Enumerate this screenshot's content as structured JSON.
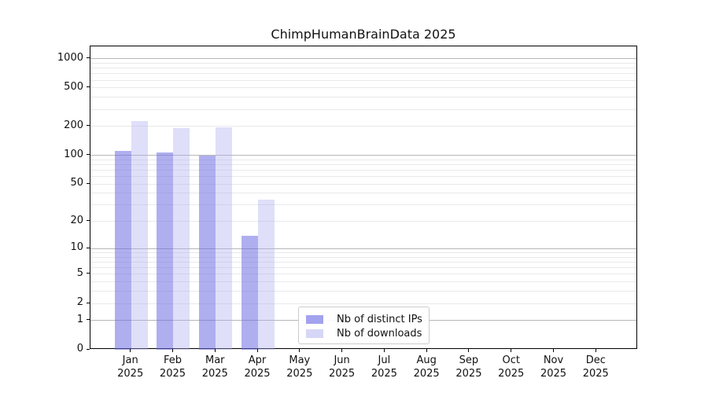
{
  "figure": {
    "title": "ChimpHumanBrainData 2025"
  },
  "chart_data": {
    "type": "bar",
    "title": "ChimpHumanBrainData 2025",
    "categories": [
      "Jan",
      "Feb",
      "Mar",
      "Apr",
      "May",
      "Jun",
      "Jul",
      "Aug",
      "Sep",
      "Oct",
      "Nov",
      "Dec"
    ],
    "year_label": "2025",
    "series": [
      {
        "name": "Nb of distinct IPs",
        "color": "#a2a2ee",
        "fill": "rgba(110,110,228,0.55)",
        "values": [
          112,
          108,
          100,
          14,
          0,
          0,
          0,
          0,
          0,
          0,
          0,
          0
        ]
      },
      {
        "name": "Nb of downloads",
        "color": "#d6d6f6",
        "fill": "rgba(170,170,240,0.38)",
        "values": [
          225,
          191,
          194,
          34,
          0,
          0,
          0,
          0,
          0,
          0,
          0,
          0
        ]
      }
    ],
    "yticks": [
      0,
      1,
      2,
      5,
      10,
      20,
      50,
      100,
      200,
      500,
      1000
    ],
    "ylim": [
      0,
      1000
    ],
    "yscale": "log1p",
    "grid": true,
    "legend_position": "lower-center",
    "axis_color": "#000000",
    "grid_major_color": "#b7b7b7",
    "grid_minor_color": "#e9e9e9"
  }
}
